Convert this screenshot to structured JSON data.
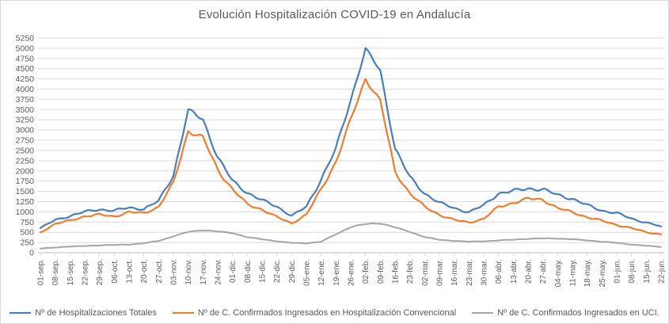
{
  "chart": {
    "title": "Evolución Hospitalización COVID-19 en Andalucía",
    "text_color": "#595959",
    "grid_color": "#d9d9d9",
    "background": "#ffffff"
  },
  "chart_data": {
    "type": "line",
    "title": "Evolución Hospitalización COVID-19 en Andalucía",
    "xlabel": "",
    "ylabel": "",
    "y_axis": {
      "min": 0,
      "max": 5250,
      "step": 250
    },
    "grid": true,
    "legend_position": "bottom",
    "categories": [
      "01-sep.",
      "08-sep.",
      "15-sep.",
      "22-sep.",
      "29-sep.",
      "06-oct.",
      "13-oct.",
      "20-oct.",
      "27-oct.",
      "03-nov.",
      "10-nov.",
      "17-nov.",
      "24-nov.",
      "01-dic.",
      "08-dic.",
      "15-dic.",
      "22-dic.",
      "29-dic.",
      "05-ene.",
      "12-ene.",
      "19-ene.",
      "26-ene.",
      "02-feb.",
      "09-feb.",
      "16-feb.",
      "23-feb.",
      "02-mar.",
      "09-mar.",
      "16-mar.",
      "23-mar.",
      "30-mar.",
      "06-abr.",
      "13-abr.",
      "20-abr.",
      "27-abr.",
      "04-may.",
      "11-may.",
      "18-may.",
      "25-may.",
      "01-jun.",
      "08-jun.",
      "15-jun.",
      "22-jun."
    ],
    "series": [
      {
        "name": "Nº de Hospitalizaciones Totales",
        "color": "#4a7ebb",
        "values": [
          600,
          800,
          900,
          1000,
          1060,
          1030,
          1100,
          1070,
          1260,
          1900,
          3480,
          3260,
          2330,
          1750,
          1470,
          1280,
          1130,
          900,
          1120,
          1800,
          2540,
          3740,
          4980,
          4450,
          2550,
          1840,
          1450,
          1220,
          1090,
          990,
          1160,
          1450,
          1510,
          1570,
          1550,
          1410,
          1320,
          1160,
          1030,
          970,
          830,
          740,
          640
        ]
      },
      {
        "name": "Nº de C. Confirmados Ingresados en Hospitalización Convencional",
        "color": "#ed7d31",
        "values": [
          500,
          700,
          790,
          890,
          930,
          890,
          990,
          970,
          1120,
          1700,
          2980,
          2810,
          2030,
          1550,
          1180,
          1060,
          870,
          720,
          930,
          1550,
          2230,
          3250,
          4260,
          3710,
          1980,
          1450,
          1120,
          930,
          800,
          740,
          830,
          1120,
          1220,
          1320,
          1300,
          1090,
          990,
          870,
          780,
          680,
          600,
          500,
          450
        ]
      },
      {
        "name": "Nº de C. Confirmados Ingresados en UCI.",
        "color": "#a5a5a5",
        "values": [
          100,
          130,
          150,
          165,
          180,
          190,
          200,
          230,
          290,
          400,
          510,
          550,
          520,
          480,
          380,
          330,
          280,
          240,
          230,
          270,
          450,
          630,
          700,
          720,
          620,
          510,
          385,
          315,
          290,
          270,
          280,
          300,
          320,
          340,
          350,
          345,
          330,
          300,
          270,
          240,
          200,
          170,
          140
        ]
      }
    ]
  }
}
